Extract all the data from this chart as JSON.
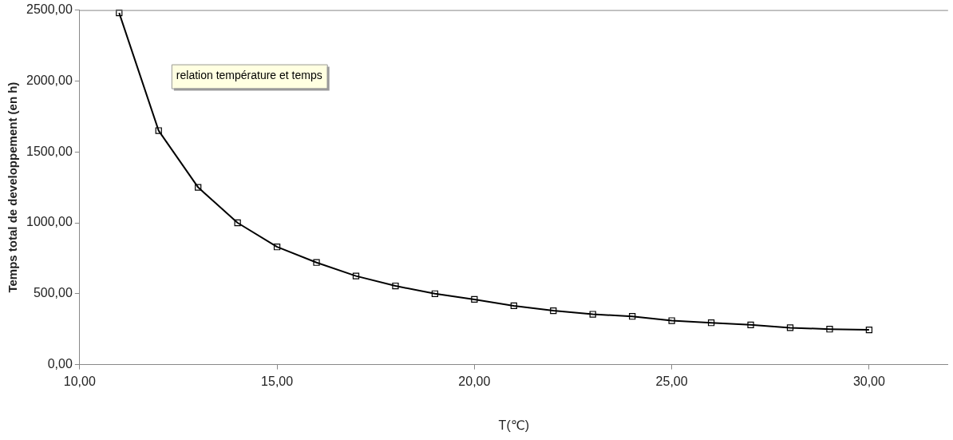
{
  "chart_data": {
    "type": "line",
    "xlabel": "T(℃)",
    "ylabel": "Temps total de developpement (en h)",
    "annotations": [
      "relation température et temps"
    ],
    "marker": "square",
    "line_style": "solid",
    "legend": false,
    "grid": false,
    "xlim": [
      10,
      32
    ],
    "ylim": [
      0,
      2500
    ],
    "xticks": [
      {
        "value": 10,
        "label": "10,00"
      },
      {
        "value": 15,
        "label": "15,00"
      },
      {
        "value": 20,
        "label": "20,00"
      },
      {
        "value": 25,
        "label": "25,00"
      },
      {
        "value": 30,
        "label": "30,00"
      }
    ],
    "yticks": [
      {
        "value": 0,
        "label": "0,00"
      },
      {
        "value": 500,
        "label": "500,00"
      },
      {
        "value": 1000,
        "label": "1000,00"
      },
      {
        "value": 1500,
        "label": "1500,00"
      },
      {
        "value": 2000,
        "label": "2000,00"
      },
      {
        "value": 2500,
        "label": "2500,00"
      }
    ],
    "x": [
      11,
      12,
      13,
      14,
      15,
      16,
      17,
      18,
      19,
      20,
      21,
      22,
      23,
      24,
      25,
      26,
      27,
      28,
      29,
      30
    ],
    "series": [
      {
        "color": "#000000",
        "values": [
          2480,
          1650,
          1250,
          1000,
          830,
          720,
          625,
          555,
          500,
          460,
          415,
          380,
          355,
          340,
          310,
          295,
          280,
          260,
          250,
          245
        ]
      }
    ]
  }
}
